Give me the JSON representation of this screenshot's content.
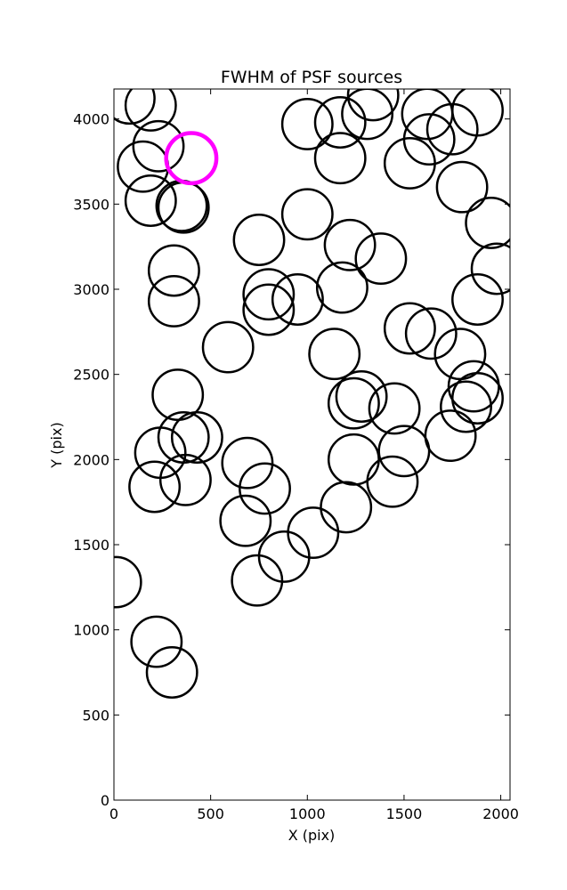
{
  "chart_data": {
    "type": "scatter",
    "title": "FWHM of PSF sources",
    "xlabel": "X (pix)",
    "ylabel": "Y (pix)",
    "xlim": [
      0,
      2048
    ],
    "ylim": [
      0,
      4176
    ],
    "xticks": [
      0,
      500,
      1000,
      1500,
      2000
    ],
    "yticks": [
      0,
      500,
      1000,
      1500,
      2000,
      2500,
      3000,
      3500,
      4000
    ],
    "grid": false,
    "marker": "circle",
    "marker_radius": 130,
    "colors": {
      "default": "#000000",
      "highlight": "#ff00ff"
    },
    "series": [
      {
        "values": [
          [
            80,
            4120
          ],
          [
            190,
            4080
          ],
          [
            230,
            3840
          ],
          [
            150,
            3720
          ],
          [
            190,
            3520
          ],
          [
            350,
            3490
          ],
          [
            360,
            3480
          ],
          [
            310,
            3110
          ],
          [
            310,
            2930
          ],
          [
            330,
            2380
          ],
          [
            240,
            2040
          ],
          [
            360,
            2130
          ],
          [
            430,
            2130
          ],
          [
            370,
            1880
          ],
          [
            210,
            1840
          ],
          [
            590,
            2660
          ],
          [
            750,
            3290
          ],
          [
            800,
            2970
          ],
          [
            800,
            2880
          ],
          [
            950,
            2940
          ],
          [
            1000,
            3440
          ],
          [
            1000,
            3970
          ],
          [
            1170,
            3980
          ],
          [
            1170,
            3770
          ],
          [
            1310,
            4030
          ],
          [
            1340,
            4140
          ],
          [
            1220,
            3260
          ],
          [
            1380,
            3180
          ],
          [
            1180,
            3010
          ],
          [
            1140,
            2620
          ],
          [
            1280,
            2370
          ],
          [
            1240,
            2330
          ],
          [
            1450,
            2300
          ],
          [
            1240,
            2000
          ],
          [
            1500,
            2050
          ],
          [
            1440,
            1870
          ],
          [
            1200,
            1720
          ],
          [
            1030,
            1570
          ],
          [
            880,
            1430
          ],
          [
            740,
            1290
          ],
          [
            680,
            1640
          ],
          [
            780,
            1830
          ],
          [
            690,
            1980
          ],
          [
            1530,
            3740
          ],
          [
            1620,
            4030
          ],
          [
            1630,
            3880
          ],
          [
            1750,
            3940
          ],
          [
            1880,
            4050
          ],
          [
            1800,
            3600
          ],
          [
            1950,
            3390
          ],
          [
            1980,
            3120
          ],
          [
            1880,
            2940
          ],
          [
            1530,
            2770
          ],
          [
            1640,
            2740
          ],
          [
            1790,
            2620
          ],
          [
            1860,
            2430
          ],
          [
            1880,
            2360
          ],
          [
            1820,
            2310
          ],
          [
            1740,
            2140
          ],
          [
            10,
            1280
          ],
          [
            220,
            930
          ],
          [
            300,
            750
          ]
        ]
      },
      {
        "values": [
          [
            400,
            3770
          ]
        ]
      }
    ]
  }
}
